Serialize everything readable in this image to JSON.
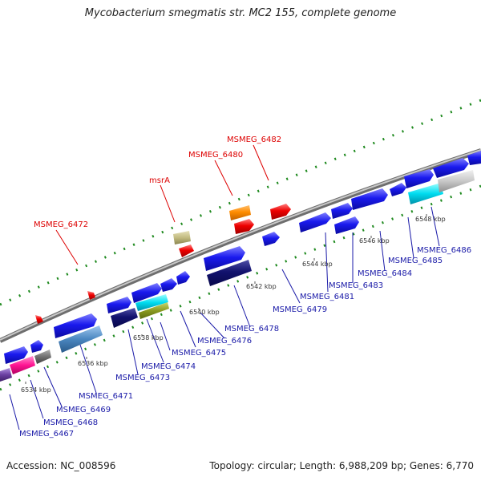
{
  "title": "Mycobacterium smegmatis str. MC2 155, complete genome",
  "footer": {
    "accession": "Accession: NC_008596",
    "summary": "Topology: circular; Length: 6,988,209 bp; Genes: 6,770"
  },
  "colors": {
    "backbone": "#8a8a8a",
    "highlight_label": "#dd0000",
    "gene_label": "#1a1aa8",
    "dots": "#1f8a1f",
    "gene_blue": "#1414e6",
    "gene_navy": "#10106e",
    "gene_red": "#ee0000",
    "gene_orange": "#ff8c00",
    "gene_khaki": "#c2bb80",
    "gene_cyan": "#00dcf0",
    "gene_silver": "#c8c8c8",
    "gene_steel": "#4a86c0",
    "gene_olive": "#8a9a20",
    "gene_pink": "#ff1493",
    "gene_grey": "#707070",
    "gene_purple": "#6a3fa0"
  },
  "scale_ticks": [
    "6534 kbp",
    "6536 kbp",
    "6538 kbp",
    "6540 kbp",
    "6542 kbp",
    "6544 kbp",
    "6546 kbp",
    "6548 kbp"
  ],
  "highlight_labels": [
    "MSMEG_6472",
    "msrA",
    "MSMEG_6480",
    "MSMEG_6482"
  ],
  "gene_labels": [
    "MSMEG_6467",
    "MSMEG_6468",
    "MSMEG_6469",
    "MSMEG_6471",
    "MSMEG_6473",
    "MSMEG_6474",
    "MSMEG_6475",
    "MSMEG_6476",
    "MSMEG_6478",
    "MSMEG_6479",
    "MSMEG_6481",
    "MSMEG_6483",
    "MSMEG_6484",
    "MSMEG_6485",
    "MSMEG_6486"
  ]
}
